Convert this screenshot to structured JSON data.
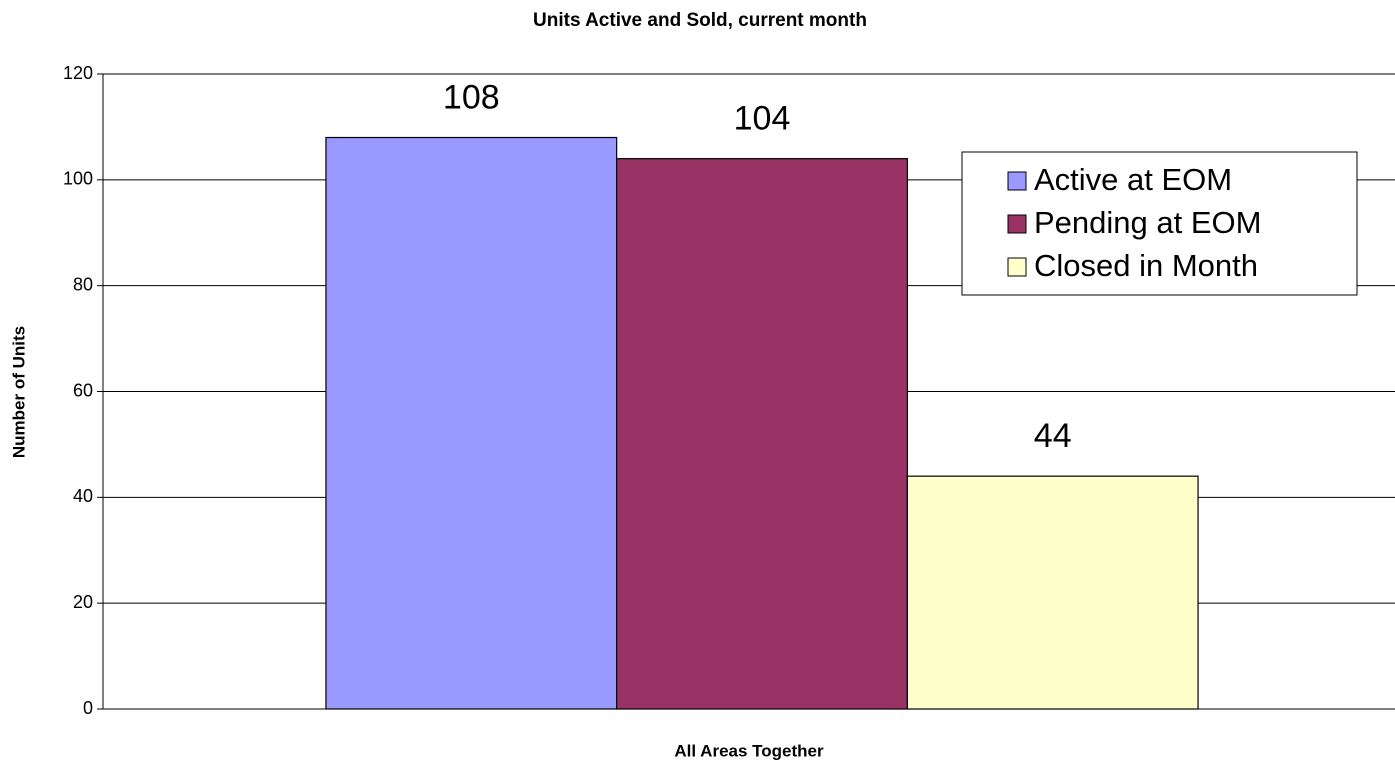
{
  "chart_data": {
    "type": "bar",
    "title": "Units Active and Sold, current month",
    "ylabel": "Number of Units",
    "categories": [
      "All Areas Together"
    ],
    "series": [
      {
        "name": "Active at EOM",
        "color": "#9999ff",
        "values": [
          108
        ]
      },
      {
        "name": "Pending at EOM",
        "color": "#993366",
        "values": [
          104
        ]
      },
      {
        "name": "Closed in Month",
        "color": "#ffffcc",
        "values": [
          44
        ]
      }
    ],
    "ylim": [
      0,
      120
    ],
    "yticks": [
      0,
      20,
      40,
      60,
      80,
      100,
      120
    ],
    "grid": true,
    "legend": "upper right"
  }
}
